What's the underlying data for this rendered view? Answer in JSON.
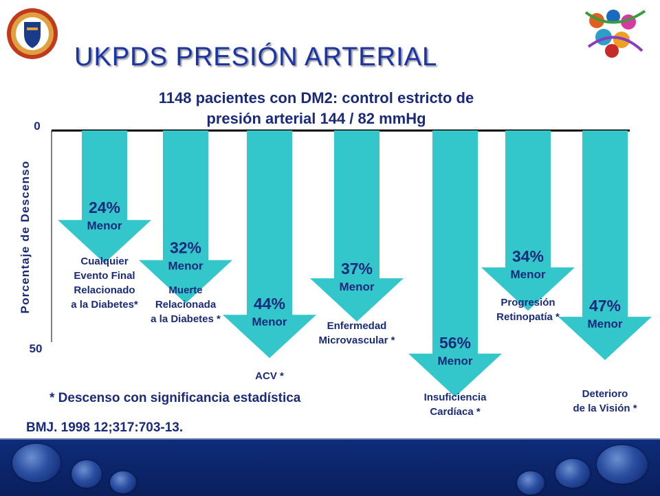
{
  "slide": {
    "title": "UKPDS PRESIÓN ARTERIAL",
    "subtitle_line1": "1148 pacientes con DM2: control estricto de",
    "subtitle_line2": "presión arterial 144 / 82 mmHg",
    "footnote": "* Descenso con significancia estadística",
    "citation": "BMJ. 1998 12;317:703-13.",
    "colors": {
      "title": "#1a33a6",
      "text": "#1a2a7a",
      "arrow": "#33c7cc",
      "band": "#0e2c7a"
    },
    "icons": [
      "university-seal-icon",
      "dna-logo-icon"
    ]
  },
  "chart_data": {
    "type": "bar",
    "ylabel": "Porcentaje de Descenso",
    "ylim": [
      0,
      50
    ],
    "y_ticks": [
      "0",
      "50"
    ],
    "value_suffix": "Menor",
    "categories": [
      [
        "Cualquier",
        "Evento Final",
        "Relacionado",
        "a la Diabetes*"
      ],
      [
        "Muerte",
        "Relacionada",
        "a la Diabetes *"
      ],
      [
        "ACV *"
      ],
      [
        "Enfermedad",
        "Microvascular *"
      ],
      [
        "Insuficiencia",
        "Cardíaca *"
      ],
      [
        "Progresión",
        "Retinopatía *"
      ],
      [
        "Deterioro",
        "de la Visión *"
      ]
    ],
    "values": [
      24,
      32,
      44,
      37,
      56,
      34,
      47
    ],
    "value_labels": [
      "24%",
      "32%",
      "44%",
      "37%",
      "56%",
      "34%",
      "47%"
    ]
  }
}
